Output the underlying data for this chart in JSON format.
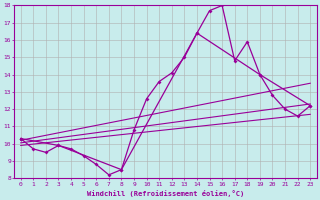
{
  "xlabel": "Windchill (Refroidissement éolien,°C)",
  "bg_color": "#c8ecec",
  "line_color": "#990099",
  "grid_color": "#b0b0b0",
  "xlim": [
    -0.5,
    23.5
  ],
  "ylim": [
    8,
    18
  ],
  "xticks": [
    0,
    1,
    2,
    3,
    4,
    5,
    6,
    7,
    8,
    9,
    10,
    11,
    12,
    13,
    14,
    15,
    16,
    17,
    18,
    19,
    20,
    21,
    22,
    23
  ],
  "yticks": [
    8,
    9,
    10,
    11,
    12,
    13,
    14,
    15,
    16,
    17,
    18
  ],
  "series1_x": [
    0,
    1,
    2,
    3,
    4,
    5,
    6,
    7,
    8,
    9,
    10,
    11,
    12,
    13,
    14,
    15,
    16,
    17,
    18,
    19,
    20,
    21,
    22,
    23
  ],
  "series1_y": [
    10.3,
    9.7,
    9.5,
    9.9,
    9.7,
    9.3,
    8.8,
    8.2,
    8.5,
    10.8,
    12.6,
    13.6,
    14.1,
    15.0,
    16.4,
    17.7,
    18.0,
    14.8,
    15.9,
    14.0,
    12.8,
    12.0,
    11.6,
    12.2
  ],
  "series2_x": [
    0,
    3,
    8,
    14,
    19,
    23
  ],
  "series2_y": [
    10.3,
    9.9,
    8.5,
    16.4,
    14.0,
    12.2
  ],
  "series3_x": [
    0,
    23
  ],
  "series3_y": [
    10.2,
    13.5
  ],
  "series4_x": [
    0,
    23
  ],
  "series4_y": [
    10.05,
    12.3
  ],
  "series5_x": [
    0,
    23
  ],
  "series5_y": [
    9.9,
    11.7
  ]
}
